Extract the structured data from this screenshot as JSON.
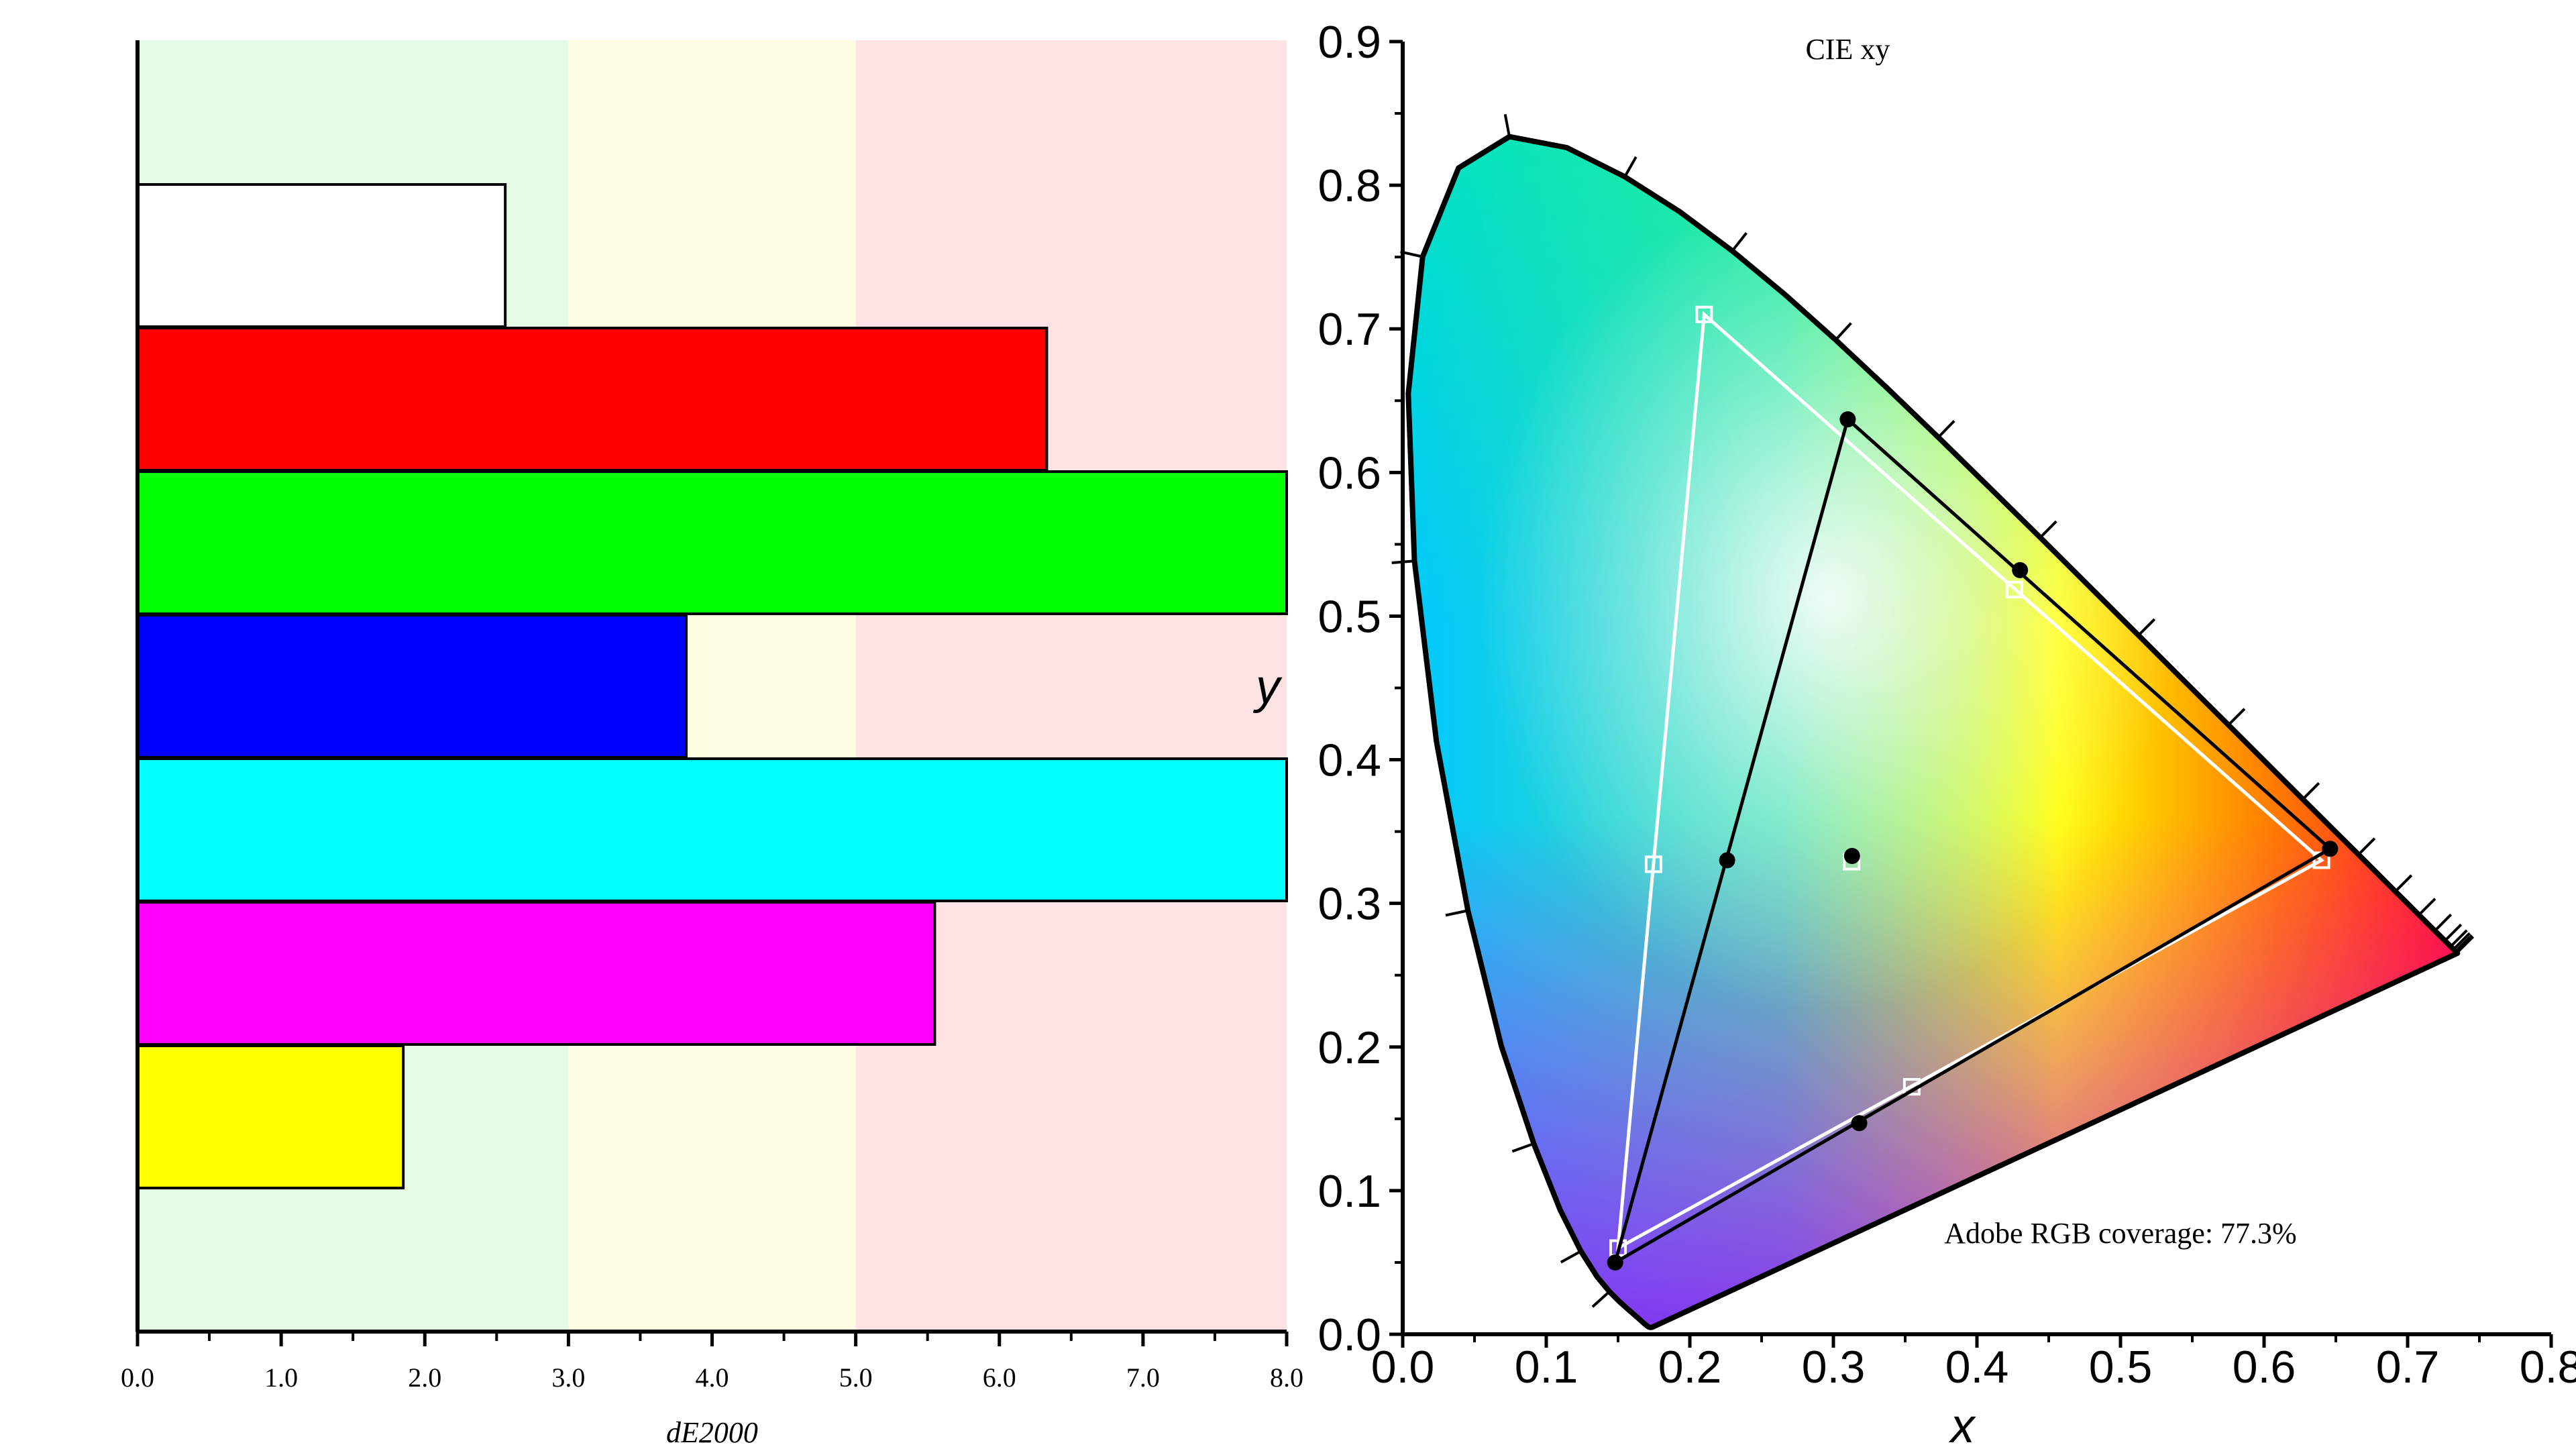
{
  "chart_data": [
    {
      "type": "bar",
      "orientation": "horizontal",
      "xlabel": "dE2000",
      "xlim": [
        0,
        8
      ],
      "x_ticks": [
        "0.0",
        "1.0",
        "2.0",
        "3.0",
        "4.0",
        "5.0",
        "6.0",
        "7.0",
        "8.0"
      ],
      "background_bands": [
        {
          "from": 0,
          "to": 3,
          "color": "#e6fbe6"
        },
        {
          "from": 3,
          "to": 5,
          "color": "#fffee2"
        },
        {
          "from": 5,
          "to": 8,
          "color": "#fde3e3"
        }
      ],
      "categories": [
        "white",
        "red",
        "green",
        "blue",
        "cyan",
        "magenta",
        "yellow"
      ],
      "values": [
        2.56,
        6.33,
        8.0,
        3.82,
        8.0,
        5.55,
        1.85
      ],
      "colors": [
        "#ffffff",
        "#ff0000",
        "#00ff00",
        "#0000ff",
        "#00ffff",
        "#ff00ff",
        "#ffff00"
      ]
    },
    {
      "type": "scatter",
      "title": "CIE xy",
      "xlabel": "x",
      "ylabel": "y",
      "xlim": [
        0.0,
        0.8
      ],
      "ylim": [
        0.0,
        0.9
      ],
      "x_ticks": [
        "0.0",
        "0.1",
        "0.2",
        "0.3",
        "0.4",
        "0.5",
        "0.6",
        "0.7",
        "0.8"
      ],
      "y_ticks": [
        "0.0",
        "0.1",
        "0.2",
        "0.3",
        "0.4",
        "0.5",
        "0.6",
        "0.7",
        "0.8",
        "0.9"
      ],
      "annotation": "Adobe RGB coverage: 77.3%",
      "measured_gamut": {
        "color": "#000000",
        "marker": "filled-circle",
        "primaries": [
          [
            0.646,
            0.338
          ],
          [
            0.31,
            0.637
          ],
          [
            0.148,
            0.05
          ]
        ],
        "secondaries": [
          [
            0.43,
            0.532
          ],
          [
            0.226,
            0.33
          ],
          [
            0.318,
            0.147
          ]
        ],
        "white": [
          0.313,
          0.333
        ]
      },
      "reference_gamut": {
        "color": "#ffffff",
        "marker": "open-square",
        "primaries": [
          [
            0.64,
            0.33
          ],
          [
            0.21,
            0.71
          ],
          [
            0.15,
            0.06
          ]
        ],
        "secondaries": [
          [
            0.4262,
            0.5185
          ],
          [
            0.1747,
            0.3272
          ],
          [
            0.3546,
            0.1723
          ]
        ],
        "white": [
          0.3127,
          0.329
        ]
      }
    }
  ]
}
